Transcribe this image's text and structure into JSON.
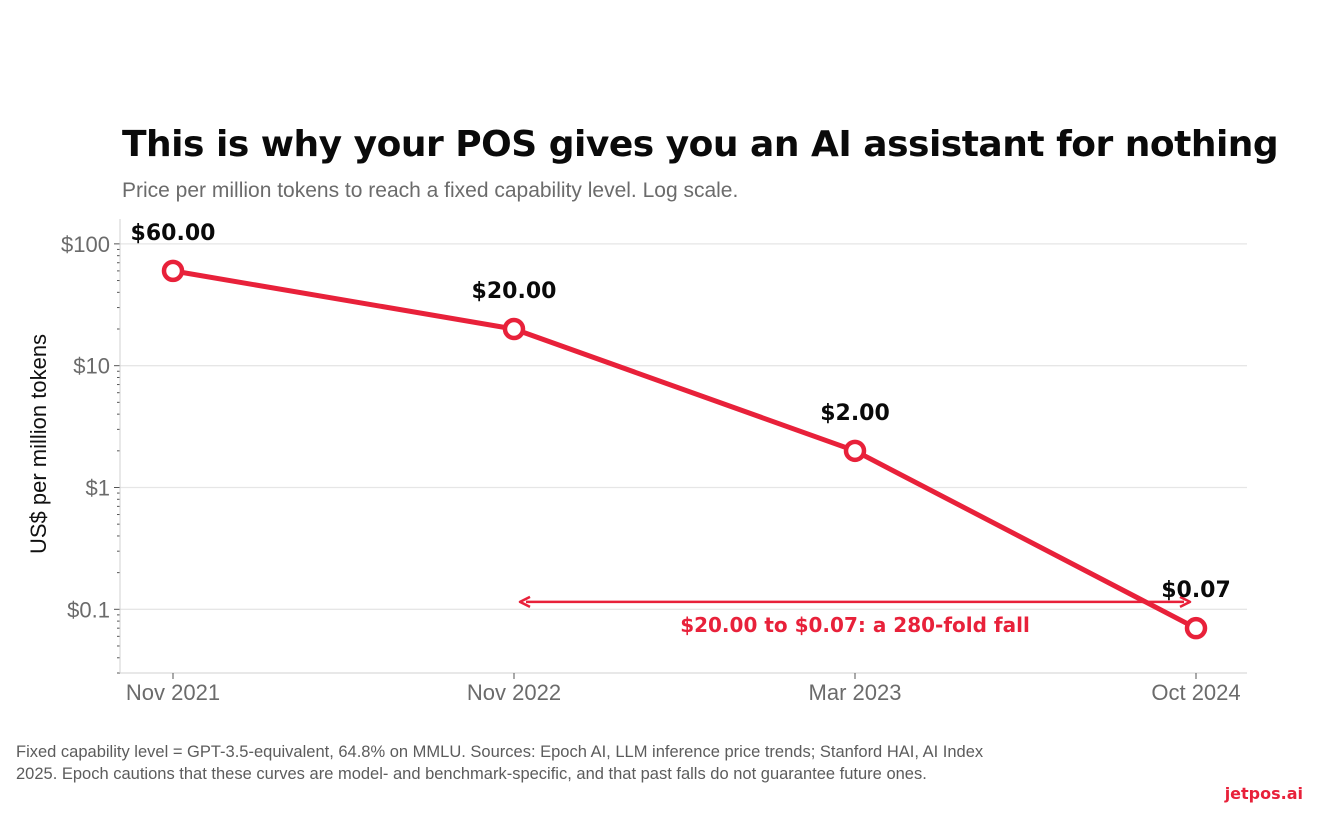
{
  "chart_data": {
    "type": "line",
    "title": "This is why your POS gives you an AI assistant for nothing",
    "subtitle": "Price per million tokens to reach a fixed capability level. Log scale.",
    "ylabel": "US$ per million tokens",
    "xlabel": "",
    "yscale": "log",
    "ylim": [
      0.03,
      160
    ],
    "grid": "horizontal",
    "categories": [
      "Nov 2021",
      "Nov 2022",
      "Mar 2023",
      "Oct 2024"
    ],
    "y_ticks": [
      {
        "value": 100,
        "label": "$100"
      },
      {
        "value": 10,
        "label": "$10"
      },
      {
        "value": 1,
        "label": "$1"
      },
      {
        "value": 0.1,
        "label": "$0.1"
      }
    ],
    "series": [
      {
        "values": [
          60,
          20,
          2,
          0.07
        ],
        "data_labels": [
          "$60.00",
          "$20.00",
          "$2.00",
          "$0.07"
        ],
        "color": "#e8213a"
      }
    ],
    "annotation": {
      "text": "$20.00 to $0.07: a 280-fold fall",
      "from_category": "Nov 2022",
      "to_category": "Oct 2024",
      "value": 0.115,
      "color": "#e8213a"
    }
  },
  "footer": {
    "note": "Fixed capability level = GPT-3.5-equivalent, 64.8% on MMLU. Sources: Epoch AI, LLM inference price trends; Stanford HAI, AI Index 2025. Epoch cautions that these curves are model- and benchmark-specific, and that past falls do not guarantee future ones.",
    "brand": "jetpos.ai"
  }
}
